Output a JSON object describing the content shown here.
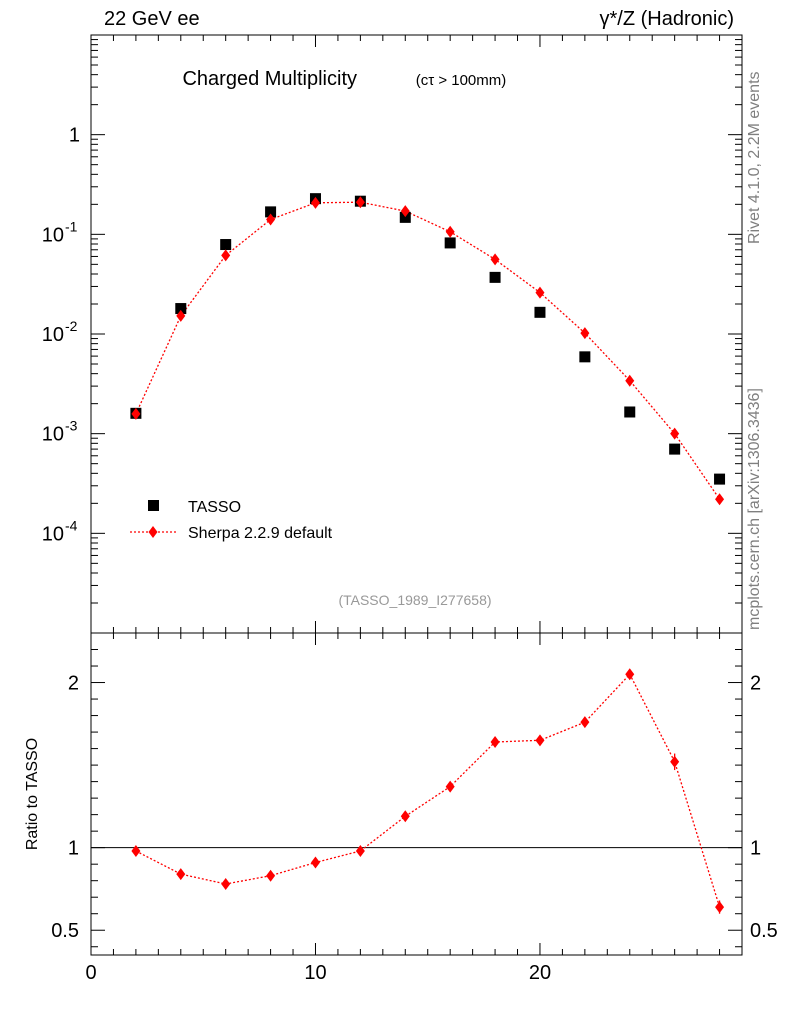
{
  "header": {
    "left": "22 GeV ee",
    "right": "γ*/Z (Hadronic)"
  },
  "side_labels": {
    "rivet": "Rivet 4.1.0,  2.2M events",
    "mcplots": "mcplots.cern.ch [arXiv:1306.3436]"
  },
  "chart_data": {
    "type": "scatter",
    "title": "Charged Multiplicity",
    "title_sub": "(cτ > 100mm)",
    "analysis": "(TASSO_1989_I277658)",
    "xlim": [
      0,
      29
    ],
    "x_ticks": [
      0,
      10,
      20
    ],
    "upper": {
      "yscale": "log",
      "ylim": [
        1e-05,
        10
      ],
      "y_ticks": [
        "1",
        "10^-1",
        "10^-2",
        "10^-3",
        "10^-4"
      ],
      "legend_position": "lower-left",
      "series": [
        {
          "name": "TASSO",
          "marker": "square",
          "color": "#000000",
          "x": [
            2,
            4,
            6,
            8,
            10,
            12,
            14,
            16,
            18,
            20,
            22,
            24,
            26,
            28
          ],
          "values": [
            0.0016,
            0.018,
            0.079,
            0.168,
            0.228,
            0.215,
            0.148,
            0.082,
            0.037,
            0.0165,
            0.0059,
            0.00165,
            0.0007,
            0.00035
          ]
        },
        {
          "name": "Sherpa 2.2.9 default",
          "marker": "diamond",
          "line": "dotted",
          "color": "#ff0000",
          "x": [
            2,
            4,
            6,
            8,
            10,
            12,
            14,
            16,
            18,
            20,
            22,
            24,
            26,
            28
          ],
          "values": [
            0.00158,
            0.0152,
            0.0615,
            0.141,
            0.207,
            0.21,
            0.171,
            0.106,
            0.056,
            0.026,
            0.0102,
            0.0034,
            0.001,
            0.00022
          ]
        }
      ]
    },
    "lower": {
      "ylabel": "Ratio to TASSO",
      "ylim": [
        0.35,
        2.3
      ],
      "y_ticks": [
        0.5,
        1,
        2
      ],
      "reference_line": 1,
      "series": [
        {
          "name": "Sherpa 2.2.9 default / TASSO",
          "color": "#ff0000",
          "x": [
            2,
            4,
            6,
            8,
            10,
            12,
            14,
            16,
            18,
            20,
            22,
            24,
            26,
            28
          ],
          "values": [
            0.98,
            0.84,
            0.78,
            0.83,
            0.91,
            0.98,
            1.19,
            1.37,
            1.64,
            1.65,
            1.76,
            2.05,
            1.52,
            0.64
          ],
          "errors": [
            0.015,
            0.015,
            0.015,
            0.015,
            0.015,
            0.015,
            0.02,
            0.02,
            0.02,
            0.02,
            0.03,
            0.03,
            0.05,
            0.04
          ]
        }
      ]
    }
  }
}
